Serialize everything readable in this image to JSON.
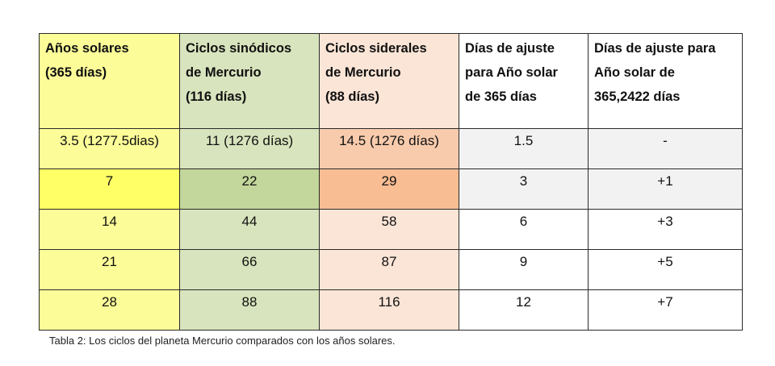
{
  "table": {
    "columns": [
      {
        "lines": [
          "Años solares",
          "(365 días)"
        ],
        "color": "#fcfc99"
      },
      {
        "lines": [
          "Ciclos sinódicos",
          "de Mercurio",
          "(116 días)"
        ],
        "color": "#d8e4bd"
      },
      {
        "lines": [
          "Ciclos siderales",
          "de Mercurio",
          "(88 días)"
        ],
        "color": "#fbe5d6"
      },
      {
        "lines": [
          "Días de ajuste",
          "para  Año solar",
          "de 365 días"
        ],
        "color": "#ffffff"
      },
      {
        "lines": [
          "Días de ajuste para",
          "Año solar de",
          "365,2422 días"
        ],
        "color": "#ffffff"
      }
    ],
    "rows": [
      {
        "cells": [
          "3.5 (1277.5dias)",
          "11   (1276 días)",
          "14.5 (1276 días)",
          "1.5",
          "-"
        ],
        "colors": [
          "#fcfc99",
          "#d8e4bd",
          "#f8cbad",
          "#f2f2f2",
          "#f2f2f2"
        ]
      },
      {
        "cells": [
          "7",
          "22",
          "29",
          "3",
          "+1"
        ],
        "colors": [
          "#ffff66",
          "#c3d69b",
          "#f8bd93",
          "#f2f2f2",
          "#f2f2f2"
        ]
      },
      {
        "cells": [
          "14",
          "44",
          "58",
          "6",
          "+3"
        ],
        "colors": [
          "#fcfc99",
          "#d8e4bd",
          "#fbe5d6",
          "#ffffff",
          "#ffffff"
        ]
      },
      {
        "cells": [
          "21",
          "66",
          "87",
          "9",
          "+5"
        ],
        "colors": [
          "#fcfc99",
          "#d8e4bd",
          "#fbe5d6",
          "#ffffff",
          "#ffffff"
        ]
      },
      {
        "cells": [
          "28",
          "88",
          "116",
          "12",
          "+7"
        ],
        "colors": [
          "#fcfc99",
          "#d8e4bd",
          "#fbe5d6",
          "#ffffff",
          "#ffffff"
        ]
      }
    ]
  },
  "caption": "Tabla 2: Los ciclos del planeta Mercurio  comparados  con los años solares."
}
